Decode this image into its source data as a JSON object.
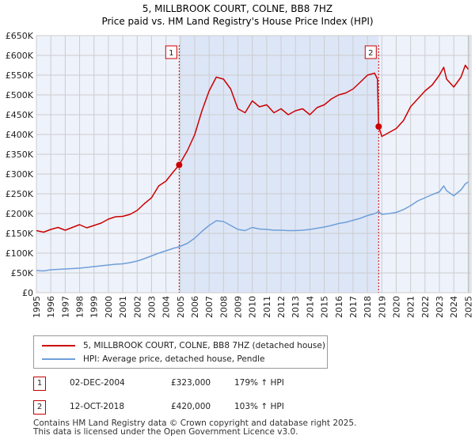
{
  "chart_data": {
    "type": "line",
    "title": "5, MILLBROOK COURT, COLNE, BB8 7HZ",
    "subtitle": "Price paid vs. HM Land Registry's House Price Index (HPI)",
    "x_tick_labels": [
      "1995",
      "1996",
      "1997",
      "1998",
      "1999",
      "2000",
      "2001",
      "2002",
      "2003",
      "2004",
      "2005",
      "2006",
      "2007",
      "2008",
      "2009",
      "2010",
      "2011",
      "2012",
      "2013",
      "2014",
      "2015",
      "2016",
      "2017",
      "2018",
      "2019",
      "2020",
      "2021",
      "2022",
      "2023",
      "2024",
      "2025"
    ],
    "y_tick_labels": [
      "£0",
      "£50K",
      "£100K",
      "£150K",
      "£200K",
      "£250K",
      "£300K",
      "£350K",
      "£400K",
      "£450K",
      "£500K",
      "£550K",
      "£600K",
      "£650K"
    ],
    "xlim": [
      1995,
      2025.2
    ],
    "ylim": [
      0,
      650000
    ],
    "grid": true,
    "shaded_period": [
      2004.92,
      2018.78
    ],
    "series": [
      {
        "name": "5, MILLBROOK COURT, COLNE, BB8 7HZ (detached house)",
        "color": "#cc0000",
        "points": [
          [
            1995.0,
            157000
          ],
          [
            1995.5,
            153000
          ],
          [
            1996.0,
            160000
          ],
          [
            1996.5,
            165000
          ],
          [
            1997.0,
            158000
          ],
          [
            1997.5,
            165000
          ],
          [
            1998.0,
            172000
          ],
          [
            1998.5,
            164000
          ],
          [
            1999.0,
            170000
          ],
          [
            1999.5,
            176000
          ],
          [
            2000.0,
            186000
          ],
          [
            2000.5,
            192000
          ],
          [
            2001.0,
            193000
          ],
          [
            2001.5,
            198000
          ],
          [
            2002.0,
            208000
          ],
          [
            2002.5,
            225000
          ],
          [
            2003.0,
            240000
          ],
          [
            2003.5,
            270000
          ],
          [
            2004.0,
            282000
          ],
          [
            2004.5,
            305000
          ],
          [
            2004.92,
            323000
          ],
          [
            2005.5,
            360000
          ],
          [
            2006.0,
            400000
          ],
          [
            2006.5,
            460000
          ],
          [
            2007.0,
            510000
          ],
          [
            2007.5,
            545000
          ],
          [
            2008.0,
            540000
          ],
          [
            2008.5,
            515000
          ],
          [
            2009.0,
            465000
          ],
          [
            2009.5,
            455000
          ],
          [
            2010.0,
            485000
          ],
          [
            2010.5,
            470000
          ],
          [
            2011.0,
            475000
          ],
          [
            2011.5,
            455000
          ],
          [
            2012.0,
            465000
          ],
          [
            2012.5,
            450000
          ],
          [
            2013.0,
            460000
          ],
          [
            2013.5,
            465000
          ],
          [
            2014.0,
            450000
          ],
          [
            2014.5,
            468000
          ],
          [
            2015.0,
            475000
          ],
          [
            2015.5,
            490000
          ],
          [
            2016.0,
            500000
          ],
          [
            2016.5,
            505000
          ],
          [
            2017.0,
            515000
          ],
          [
            2017.5,
            532000
          ],
          [
            2018.0,
            550000
          ],
          [
            2018.5,
            555000
          ],
          [
            2018.7,
            540000
          ],
          [
            2018.78,
            420000
          ],
          [
            2019.0,
            395000
          ],
          [
            2019.5,
            405000
          ],
          [
            2020.0,
            415000
          ],
          [
            2020.5,
            435000
          ],
          [
            2021.0,
            470000
          ],
          [
            2021.5,
            490000
          ],
          [
            2022.0,
            510000
          ],
          [
            2022.5,
            525000
          ],
          [
            2023.0,
            550000
          ],
          [
            2023.3,
            570000
          ],
          [
            2023.5,
            540000
          ],
          [
            2024.0,
            520000
          ],
          [
            2024.5,
            545000
          ],
          [
            2024.8,
            575000
          ],
          [
            2025.0,
            565000
          ]
        ]
      },
      {
        "name": "HPI: Average price, detached house, Pendle",
        "color": "#6f9fd8",
        "points": [
          [
            1995.0,
            56000
          ],
          [
            1995.5,
            55000
          ],
          [
            1996.0,
            58000
          ],
          [
            1996.5,
            59000
          ],
          [
            1997.0,
            60000
          ],
          [
            1997.5,
            61000
          ],
          [
            1998.0,
            62000
          ],
          [
            1998.5,
            64000
          ],
          [
            1999.0,
            66000
          ],
          [
            1999.5,
            68000
          ],
          [
            2000.0,
            70000
          ],
          [
            2000.5,
            72000
          ],
          [
            2001.0,
            73000
          ],
          [
            2001.5,
            76000
          ],
          [
            2002.0,
            80000
          ],
          [
            2002.5,
            86000
          ],
          [
            2003.0,
            93000
          ],
          [
            2003.5,
            100000
          ],
          [
            2004.0,
            106000
          ],
          [
            2004.5,
            112000
          ],
          [
            2004.92,
            116000
          ],
          [
            2005.5,
            125000
          ],
          [
            2006.0,
            138000
          ],
          [
            2006.5,
            155000
          ],
          [
            2007.0,
            170000
          ],
          [
            2007.5,
            182000
          ],
          [
            2008.0,
            180000
          ],
          [
            2008.5,
            170000
          ],
          [
            2009.0,
            160000
          ],
          [
            2009.5,
            157000
          ],
          [
            2010.0,
            165000
          ],
          [
            2010.5,
            161000
          ],
          [
            2011.0,
            160000
          ],
          [
            2011.5,
            158000
          ],
          [
            2012.0,
            158000
          ],
          [
            2012.5,
            157000
          ],
          [
            2013.0,
            157000
          ],
          [
            2013.5,
            158000
          ],
          [
            2014.0,
            160000
          ],
          [
            2014.5,
            163000
          ],
          [
            2015.0,
            166000
          ],
          [
            2015.5,
            170000
          ],
          [
            2016.0,
            175000
          ],
          [
            2016.5,
            178000
          ],
          [
            2017.0,
            183000
          ],
          [
            2017.5,
            188000
          ],
          [
            2018.0,
            195000
          ],
          [
            2018.5,
            200000
          ],
          [
            2018.78,
            205000
          ],
          [
            2019.0,
            198000
          ],
          [
            2019.5,
            200000
          ],
          [
            2020.0,
            203000
          ],
          [
            2020.5,
            210000
          ],
          [
            2021.0,
            220000
          ],
          [
            2021.5,
            232000
          ],
          [
            2022.0,
            240000
          ],
          [
            2022.5,
            248000
          ],
          [
            2023.0,
            255000
          ],
          [
            2023.3,
            270000
          ],
          [
            2023.5,
            258000
          ],
          [
            2024.0,
            245000
          ],
          [
            2024.5,
            260000
          ],
          [
            2024.8,
            275000
          ],
          [
            2025.0,
            280000
          ]
        ]
      }
    ],
    "sales": [
      {
        "label": "1",
        "date": "02-DEC-2004",
        "x": 2004.92,
        "price_value": 323000,
        "price": "£323,000",
        "hpi_change": "179% ↑ HPI"
      },
      {
        "label": "2",
        "date": "12-OCT-2018",
        "x": 2018.78,
        "price_value": 420000,
        "price": "£420,000",
        "hpi_change": "103% ↑ HPI"
      }
    ]
  },
  "footer": {
    "line1": "Contains HM Land Registry data © Crown copyright and database right 2025.",
    "line2": "This data is licensed under the Open Government Licence v3.0."
  },
  "colors": {
    "grid": "#cccccc",
    "plot_bg": "#eef2fb",
    "shade": "#dde6f7",
    "marker": "#cc0000"
  }
}
